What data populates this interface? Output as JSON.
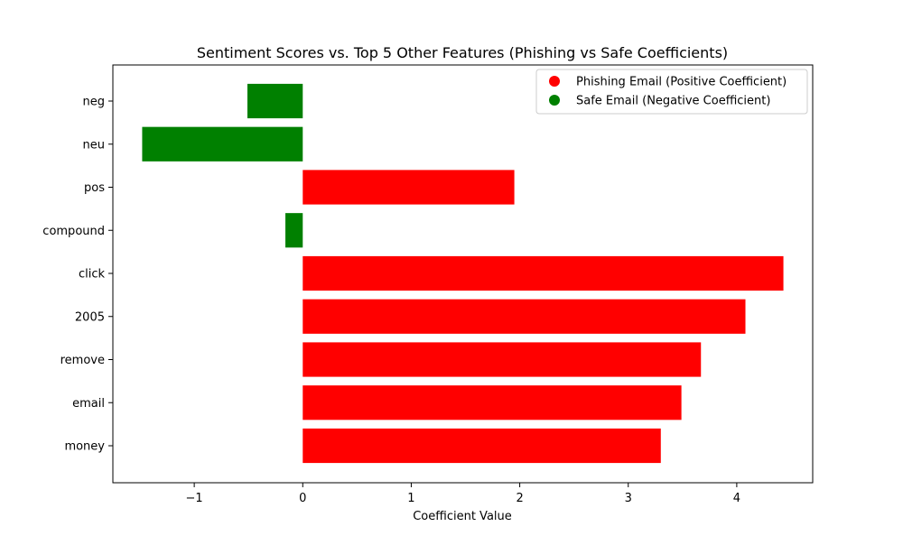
{
  "chart_data": {
    "type": "bar",
    "orientation": "horizontal",
    "title": "Sentiment Scores vs. Top 5 Other Features (Phishing vs Safe Coefficients)",
    "xlabel": "Coefficient Value",
    "ylabel": "",
    "xlim": [
      -1.75,
      4.7
    ],
    "x_ticks": [
      -1,
      0,
      1,
      2,
      3,
      4
    ],
    "x_tick_labels": [
      "−1",
      "0",
      "1",
      "2",
      "3",
      "4"
    ],
    "grid": false,
    "categories": [
      "neg",
      "neu",
      "pos",
      "compound",
      "click",
      "2005",
      "remove",
      "email",
      "money"
    ],
    "values": [
      -0.51,
      -1.48,
      1.95,
      -0.16,
      4.43,
      4.08,
      3.67,
      3.49,
      3.3
    ],
    "colors": {
      "positive": "#ff0000",
      "negative": "#008000"
    },
    "legend": {
      "placement": "top-right",
      "entries": [
        {
          "label": "Phishing Email (Positive Coefficient)",
          "color": "#ff0000"
        },
        {
          "label": "Safe Email (Negative Coefficient)",
          "color": "#008000"
        }
      ]
    }
  }
}
